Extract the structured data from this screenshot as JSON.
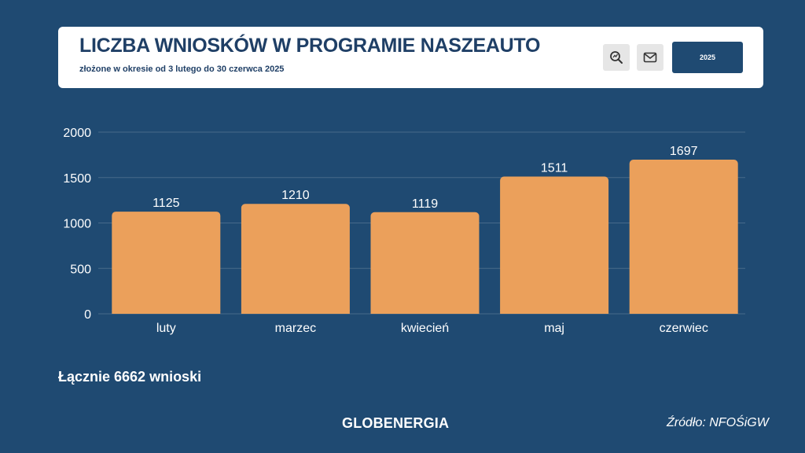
{
  "header": {
    "title": "LICZBA WNIOSKÓW W PROGRAMIE NASZEAUTO",
    "subtitle": "złożone w okresie od 3 lutego do 30 czerwca 2025",
    "search_icon": "search-magnify-icon",
    "mail_icon": "envelope-icon",
    "year_label": "2025"
  },
  "chart_data": {
    "type": "bar",
    "categories": [
      "luty",
      "marzec",
      "kwiecień",
      "maj",
      "czerwiec"
    ],
    "values": [
      1125,
      1210,
      1119,
      1511,
      1697
    ],
    "ylim": [
      0,
      2000
    ],
    "yticks": [
      "0",
      "500",
      "1000",
      "1500",
      "2000"
    ],
    "title": "",
    "xlabel": "",
    "ylabel": "",
    "grid": true,
    "bar_color": "#eba05b"
  },
  "footer": {
    "total": "Łącznie 6662 wnioski",
    "logo": "GLOBENERGIA",
    "source": "Źródło: NFOŚiGW"
  },
  "colors": {
    "background": "#1f4a72",
    "header_bg": "#ffffff",
    "title": "#1f3f66",
    "bar": "#eba05b"
  }
}
